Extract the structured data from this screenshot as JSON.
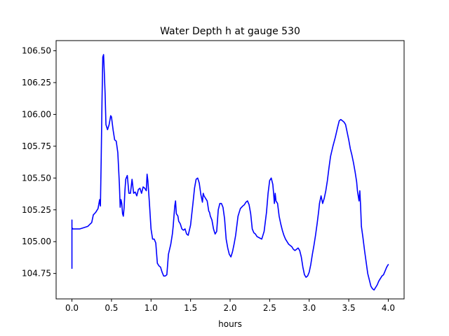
{
  "chart_data": {
    "type": "line",
    "title": "Water Depth h at gauge 530",
    "xlabel": "hours",
    "ylabel": "",
    "xlim": [
      -0.2,
      4.2
    ],
    "ylim": [
      104.55,
      106.58
    ],
    "grid": false,
    "xticks": [
      0.0,
      0.5,
      1.0,
      1.5,
      2.0,
      2.5,
      3.0,
      3.5,
      4.0
    ],
    "xtick_labels": [
      "0.0",
      "0.5",
      "1.0",
      "1.5",
      "2.0",
      "2.5",
      "3.0",
      "3.5",
      "4.0"
    ],
    "yticks": [
      104.75,
      105.0,
      105.25,
      105.5,
      105.75,
      106.0,
      106.25,
      106.5
    ],
    "ytick_labels": [
      "104.75",
      "105.00",
      "105.25",
      "105.50",
      "105.75",
      "106.00",
      "106.25",
      "106.50"
    ],
    "series": [
      {
        "color": "#0000ff",
        "x": [
          0.0,
          0.0,
          0.0,
          0.01,
          0.05,
          0.1,
          0.15,
          0.2,
          0.25,
          0.27,
          0.3,
          0.33,
          0.35,
          0.36,
          0.37,
          0.38,
          0.39,
          0.4,
          0.41,
          0.42,
          0.43,
          0.45,
          0.47,
          0.49,
          0.5,
          0.52,
          0.54,
          0.56,
          0.58,
          0.6,
          0.61,
          0.62,
          0.63,
          0.64,
          0.65,
          0.66,
          0.67,
          0.68,
          0.7,
          0.72,
          0.74,
          0.76,
          0.78,
          0.8,
          0.82,
          0.84,
          0.86,
          0.88,
          0.9,
          0.92,
          0.94,
          0.95,
          0.96,
          0.98,
          1.0,
          1.02,
          1.04,
          1.06,
          1.08,
          1.1,
          1.12,
          1.14,
          1.16,
          1.18,
          1.2,
          1.22,
          1.25,
          1.27,
          1.28,
          1.29,
          1.3,
          1.31,
          1.32,
          1.34,
          1.35,
          1.37,
          1.39,
          1.41,
          1.43,
          1.45,
          1.47,
          1.5,
          1.53,
          1.55,
          1.57,
          1.59,
          1.61,
          1.63,
          1.65,
          1.66,
          1.67,
          1.69,
          1.71,
          1.73,
          1.74,
          1.75,
          1.77,
          1.79,
          1.81,
          1.83,
          1.85,
          1.87,
          1.89,
          1.91,
          1.93,
          1.95,
          1.97,
          1.99,
          2.01,
          2.03,
          2.05,
          2.07,
          2.1,
          2.13,
          2.16,
          2.18,
          2.2,
          2.22,
          2.24,
          2.26,
          2.28,
          2.3,
          2.32,
          2.34,
          2.37,
          2.4,
          2.43,
          2.46,
          2.48,
          2.5,
          2.52,
          2.54,
          2.55,
          2.56,
          2.57,
          2.58,
          2.6,
          2.62,
          2.64,
          2.66,
          2.68,
          2.7,
          2.72,
          2.74,
          2.76,
          2.78,
          2.8,
          2.82,
          2.84,
          2.86,
          2.88,
          2.9,
          2.92,
          2.94,
          2.96,
          2.98,
          3.0,
          3.02,
          3.04,
          3.06,
          3.08,
          3.1,
          3.12,
          3.13,
          3.15,
          3.17,
          3.19,
          3.21,
          3.23,
          3.25,
          3.27,
          3.3,
          3.33,
          3.36,
          3.38,
          3.4,
          3.42,
          3.44,
          3.46,
          3.48,
          3.5,
          3.52,
          3.54,
          3.56,
          3.58,
          3.6,
          3.61,
          3.62,
          3.63,
          3.64,
          3.65,
          3.66,
          3.68,
          3.7,
          3.72,
          3.74,
          3.76,
          3.78,
          3.8,
          3.82,
          3.84,
          3.86,
          3.88,
          3.9,
          3.92,
          3.94,
          3.96,
          3.98,
          4.0
        ],
        "y": [
          104.79,
          105.17,
          105.11,
          105.1,
          105.1,
          105.1,
          105.11,
          105.12,
          105.15,
          105.21,
          105.23,
          105.26,
          105.33,
          105.28,
          105.65,
          106.1,
          106.45,
          106.47,
          106.32,
          106.15,
          105.92,
          105.88,
          105.92,
          105.99,
          105.98,
          105.88,
          105.8,
          105.79,
          105.7,
          105.45,
          105.27,
          105.33,
          105.3,
          105.22,
          105.2,
          105.27,
          105.4,
          105.49,
          105.52,
          105.38,
          105.38,
          105.49,
          105.38,
          105.39,
          105.36,
          105.41,
          105.42,
          105.38,
          105.43,
          105.42,
          105.4,
          105.53,
          105.48,
          105.3,
          105.1,
          105.02,
          105.02,
          104.99,
          104.83,
          104.81,
          104.8,
          104.76,
          104.73,
          104.73,
          104.74,
          104.9,
          104.98,
          105.06,
          105.12,
          105.2,
          105.28,
          105.32,
          105.22,
          105.2,
          105.16,
          105.14,
          105.1,
          105.09,
          105.1,
          105.06,
          105.05,
          105.13,
          105.3,
          105.42,
          105.49,
          105.5,
          105.46,
          105.37,
          105.31,
          105.38,
          105.36,
          105.34,
          105.32,
          105.24,
          105.23,
          105.2,
          105.17,
          105.1,
          105.06,
          105.08,
          105.25,
          105.3,
          105.3,
          105.27,
          105.18,
          105.02,
          104.95,
          104.9,
          104.88,
          104.92,
          104.98,
          105.05,
          105.2,
          105.26,
          105.28,
          105.29,
          105.31,
          105.32,
          105.29,
          105.22,
          105.1,
          105.07,
          105.06,
          105.04,
          105.03,
          105.02,
          105.08,
          105.23,
          105.38,
          105.48,
          105.5,
          105.45,
          105.38,
          105.3,
          105.38,
          105.32,
          105.3,
          105.2,
          105.14,
          105.09,
          105.05,
          105.02,
          105.0,
          104.98,
          104.97,
          104.96,
          104.94,
          104.93,
          104.94,
          104.95,
          104.93,
          104.88,
          104.8,
          104.74,
          104.72,
          104.73,
          104.76,
          104.82,
          104.9,
          104.97,
          105.05,
          105.14,
          105.24,
          105.3,
          105.36,
          105.3,
          105.34,
          105.4,
          105.48,
          105.58,
          105.67,
          105.75,
          105.82,
          105.9,
          105.95,
          105.96,
          105.95,
          105.94,
          105.92,
          105.86,
          105.8,
          105.73,
          105.68,
          105.62,
          105.55,
          105.47,
          105.4,
          105.36,
          105.32,
          105.4,
          105.28,
          105.12,
          105.03,
          104.93,
          104.84,
          104.75,
          104.7,
          104.65,
          104.63,
          104.62,
          104.64,
          104.66,
          104.69,
          104.71,
          104.73,
          104.74,
          104.77,
          104.8,
          104.82
        ]
      }
    ]
  }
}
